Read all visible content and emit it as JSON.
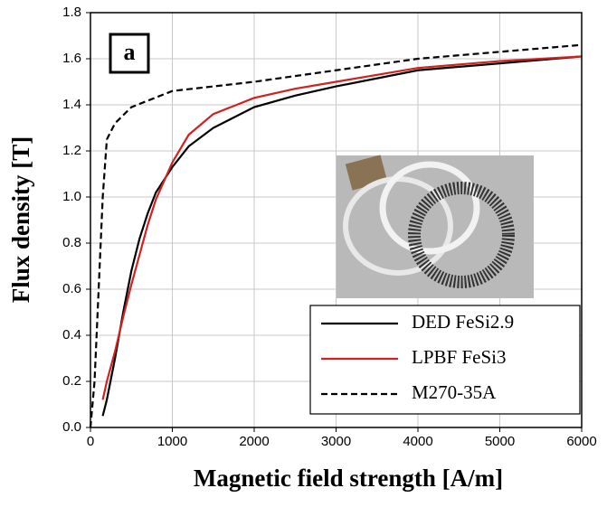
{
  "chart_data": {
    "type": "line",
    "xlabel": "Magnetic field strength [A/m]",
    "ylabel": "Flux density [T]",
    "annotation": "a",
    "xlim": [
      0,
      6000
    ],
    "xticks": [
      0,
      1000,
      2000,
      3000,
      4000,
      5000,
      6000
    ],
    "ylim": [
      0,
      1.8
    ],
    "yticks": [
      {
        "value": 0,
        "label": "0.0"
      },
      0.2,
      0.4,
      0.6,
      0.8,
      {
        "value": 1,
        "label": "1.0"
      },
      1.2,
      1.4,
      1.6,
      1.8
    ],
    "grid": true,
    "legend": "lower right",
    "series": [
      {
        "name": "DED FeSi2.9",
        "color": "#000000",
        "dash": false,
        "x": [
          150,
          200,
          300,
          400,
          500,
          600,
          700,
          800,
          1000,
          1200,
          1500,
          2000,
          2500,
          3000,
          4000,
          5000,
          6000
        ],
        "values": [
          0.05,
          0.12,
          0.3,
          0.5,
          0.68,
          0.82,
          0.93,
          1.02,
          1.13,
          1.22,
          1.3,
          1.39,
          1.44,
          1.48,
          1.55,
          1.58,
          1.61
        ]
      },
      {
        "name": "LPBF FeSi3",
        "color": "#d42020",
        "dash": false,
        "x": [
          150,
          200,
          300,
          400,
          500,
          600,
          700,
          800,
          1000,
          1200,
          1500,
          2000,
          2500,
          3000,
          4000,
          5000,
          6000
        ],
        "values": [
          0.12,
          0.2,
          0.33,
          0.48,
          0.62,
          0.75,
          0.88,
          0.99,
          1.15,
          1.27,
          1.36,
          1.43,
          1.47,
          1.5,
          1.56,
          1.59,
          1.61
        ]
      },
      {
        "name": "M270-35A",
        "color": "#000000",
        "dash": true,
        "x": [
          0,
          50,
          100,
          150,
          200,
          300,
          500,
          1000,
          2000,
          3000,
          4000,
          5000,
          6000
        ],
        "values": [
          0.0,
          0.2,
          0.6,
          1.0,
          1.25,
          1.32,
          1.39,
          1.46,
          1.5,
          1.55,
          1.6,
          1.63,
          1.66
        ]
      }
    ]
  }
}
